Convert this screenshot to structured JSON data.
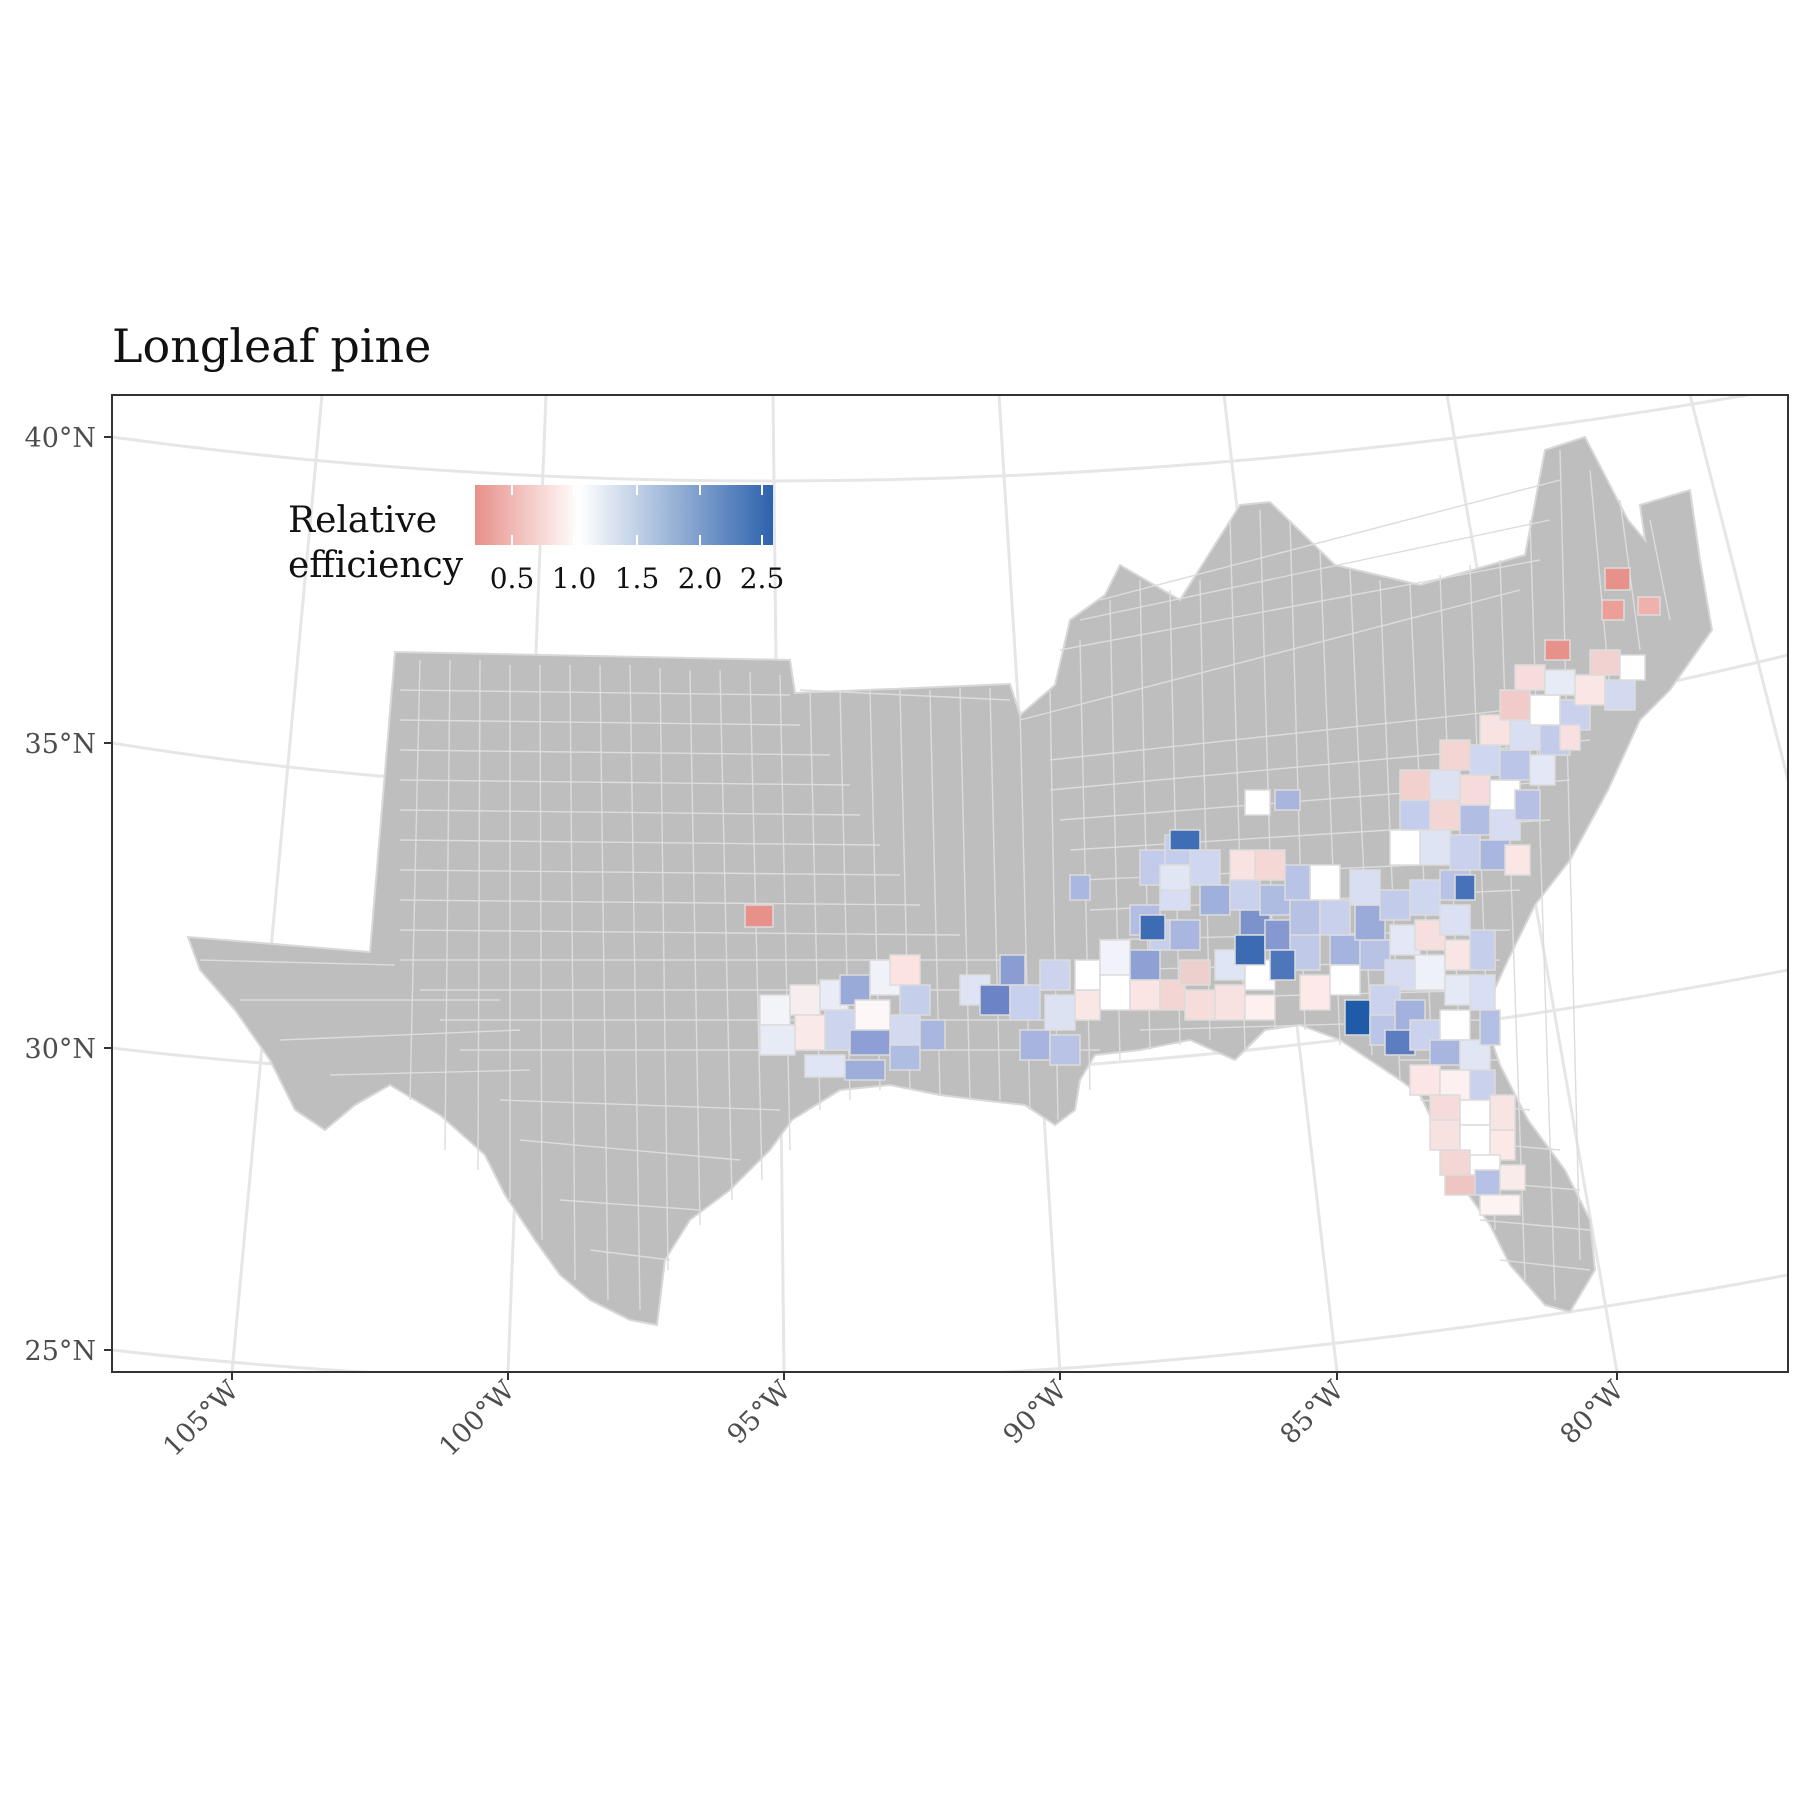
{
  "title": "Longleaf pine",
  "legend": {
    "title_line1": "Relative",
    "title_line2": "efficiency",
    "ticks": [
      "0.5",
      "1.0",
      "1.5",
      "2.0",
      "2.5"
    ],
    "colors": {
      "low": "#e8908a",
      "mid": "#ffffff",
      "high": "#2d62ad"
    }
  },
  "axes": {
    "lat_labels": [
      "40°N",
      "35°N",
      "30°N",
      "25°N"
    ],
    "lon_labels": [
      "105°W",
      "100°W",
      "95°W",
      "90°W",
      "85°W",
      "80°W"
    ]
  },
  "colors": {
    "no_data": "#bebebe",
    "border": "#e8e8e8",
    "graticule": "#e6e6e6",
    "panel_border": "#333333"
  }
}
